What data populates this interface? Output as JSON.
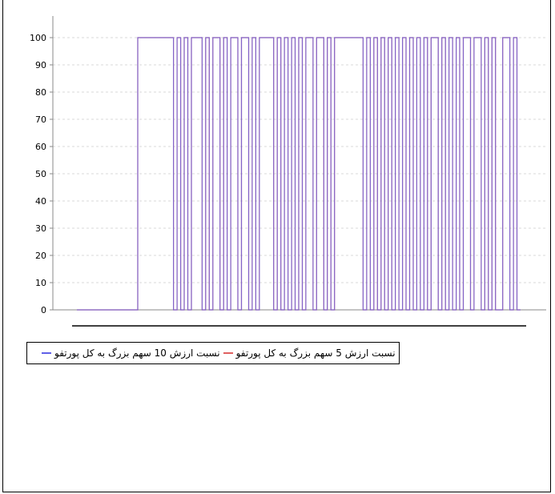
{
  "chart_data": {
    "type": "line",
    "title": "",
    "xlabel": "",
    "ylabel": "",
    "ylim": [
      0,
      100
    ],
    "yticks": [
      0,
      10,
      20,
      30,
      40,
      50,
      60,
      70,
      80,
      90,
      100
    ],
    "grid": true,
    "legend_position": "bottom",
    "series": [
      {
        "name": "نسبت ارزش 5 سهم بزرگ به کل پورتفو",
        "color": "#e06060",
        "ranges": [
          [
            0,
            17,
            0
          ],
          [
            17,
            27,
            100
          ],
          [
            27,
            28,
            0
          ],
          [
            28,
            29,
            100
          ],
          [
            29,
            30,
            0
          ],
          [
            30,
            31,
            100
          ],
          [
            31,
            32,
            0
          ],
          [
            32,
            35,
            100
          ],
          [
            35,
            36,
            0
          ],
          [
            36,
            37,
            100
          ],
          [
            37,
            38,
            0
          ],
          [
            38,
            40,
            100
          ],
          [
            40,
            41,
            0
          ],
          [
            41,
            42,
            100
          ],
          [
            42,
            43,
            0
          ],
          [
            43,
            45,
            100
          ],
          [
            45,
            46,
            0
          ],
          [
            46,
            48,
            100
          ],
          [
            48,
            49,
            0
          ],
          [
            49,
            50,
            100
          ],
          [
            50,
            51,
            0
          ],
          [
            51,
            55,
            100
          ],
          [
            55,
            56,
            0
          ],
          [
            56,
            57,
            100
          ],
          [
            57,
            58,
            0
          ],
          [
            58,
            59,
            100
          ],
          [
            59,
            60,
            0
          ],
          [
            60,
            61,
            100
          ],
          [
            61,
            62,
            0
          ],
          [
            62,
            63,
            100
          ],
          [
            63,
            64,
            0
          ],
          [
            64,
            66,
            100
          ],
          [
            66,
            67,
            0
          ],
          [
            67,
            69,
            100
          ],
          [
            69,
            70,
            0
          ],
          [
            70,
            71,
            100
          ],
          [
            71,
            72,
            0
          ],
          [
            72,
            80,
            100
          ],
          [
            80,
            81,
            0
          ],
          [
            81,
            82,
            100
          ],
          [
            82,
            83,
            0
          ],
          [
            83,
            84,
            100
          ],
          [
            84,
            85,
            0
          ],
          [
            85,
            86,
            100
          ],
          [
            86,
            87,
            0
          ],
          [
            87,
            88,
            100
          ],
          [
            88,
            89,
            0
          ],
          [
            89,
            90,
            100
          ],
          [
            90,
            91,
            0
          ],
          [
            91,
            92,
            100
          ],
          [
            92,
            93,
            0
          ],
          [
            93,
            94,
            100
          ],
          [
            94,
            95,
            0
          ],
          [
            95,
            96,
            100
          ],
          [
            96,
            97,
            0
          ],
          [
            97,
            98,
            100
          ],
          [
            98,
            99,
            0
          ],
          [
            99,
            101,
            100
          ],
          [
            101,
            102,
            0
          ],
          [
            102,
            103,
            100
          ],
          [
            103,
            104,
            0
          ],
          [
            104,
            105,
            100
          ],
          [
            105,
            106,
            0
          ],
          [
            106,
            107,
            100
          ],
          [
            107,
            108,
            0
          ],
          [
            108,
            110,
            100
          ],
          [
            110,
            111,
            0
          ],
          [
            111,
            113,
            100
          ],
          [
            113,
            114,
            0
          ],
          [
            114,
            115,
            100
          ],
          [
            115,
            116,
            0
          ],
          [
            116,
            117,
            100
          ],
          [
            117,
            119,
            0
          ],
          [
            119,
            121,
            100
          ],
          [
            121,
            122,
            0
          ],
          [
            122,
            123,
            100
          ],
          [
            123,
            124,
            0
          ]
        ]
      },
      {
        "name": "نسبت ارزش 10 سهم بزرگ به کل پورتفو",
        "color": "#6060e8",
        "ranges": [
          [
            0,
            17,
            0
          ],
          [
            17,
            27,
            100
          ],
          [
            27,
            28,
            0
          ],
          [
            28,
            29,
            100
          ],
          [
            29,
            30,
            0
          ],
          [
            30,
            31,
            100
          ],
          [
            31,
            32,
            0
          ],
          [
            32,
            35,
            100
          ],
          [
            35,
            36,
            0
          ],
          [
            36,
            37,
            100
          ],
          [
            37,
            38,
            0
          ],
          [
            38,
            40,
            100
          ],
          [
            40,
            41,
            0
          ],
          [
            41,
            42,
            100
          ],
          [
            42,
            43,
            0
          ],
          [
            43,
            45,
            100
          ],
          [
            45,
            46,
            0
          ],
          [
            46,
            48,
            100
          ],
          [
            48,
            49,
            0
          ],
          [
            49,
            50,
            100
          ],
          [
            50,
            51,
            0
          ],
          [
            51,
            55,
            100
          ],
          [
            55,
            56,
            0
          ],
          [
            56,
            57,
            100
          ],
          [
            57,
            58,
            0
          ],
          [
            58,
            59,
            100
          ],
          [
            59,
            60,
            0
          ],
          [
            60,
            61,
            100
          ],
          [
            61,
            62,
            0
          ],
          [
            62,
            63,
            100
          ],
          [
            63,
            64,
            0
          ],
          [
            64,
            66,
            100
          ],
          [
            66,
            67,
            0
          ],
          [
            67,
            69,
            100
          ],
          [
            69,
            70,
            0
          ],
          [
            70,
            71,
            100
          ],
          [
            71,
            72,
            0
          ],
          [
            72,
            80,
            100
          ],
          [
            80,
            81,
            0
          ],
          [
            81,
            82,
            100
          ],
          [
            82,
            83,
            0
          ],
          [
            83,
            84,
            100
          ],
          [
            84,
            85,
            0
          ],
          [
            85,
            86,
            100
          ],
          [
            86,
            87,
            0
          ],
          [
            87,
            88,
            100
          ],
          [
            88,
            89,
            0
          ],
          [
            89,
            90,
            100
          ],
          [
            90,
            91,
            0
          ],
          [
            91,
            92,
            100
          ],
          [
            92,
            93,
            0
          ],
          [
            93,
            94,
            100
          ],
          [
            94,
            95,
            0
          ],
          [
            95,
            96,
            100
          ],
          [
            96,
            97,
            0
          ],
          [
            97,
            98,
            100
          ],
          [
            98,
            99,
            0
          ],
          [
            99,
            101,
            100
          ],
          [
            101,
            102,
            0
          ],
          [
            102,
            103,
            100
          ],
          [
            103,
            104,
            0
          ],
          [
            104,
            105,
            100
          ],
          [
            105,
            106,
            0
          ],
          [
            106,
            107,
            100
          ],
          [
            107,
            108,
            0
          ],
          [
            108,
            110,
            100
          ],
          [
            110,
            111,
            0
          ],
          [
            111,
            113,
            100
          ],
          [
            113,
            114,
            0
          ],
          [
            114,
            115,
            100
          ],
          [
            115,
            116,
            0
          ],
          [
            116,
            117,
            100
          ],
          [
            117,
            119,
            0
          ],
          [
            119,
            121,
            100
          ],
          [
            121,
            122,
            0
          ],
          [
            122,
            123,
            100
          ],
          [
            123,
            124,
            0
          ]
        ]
      }
    ]
  },
  "legend": {
    "item1_label": "نسبت ارزش 10 سهم بزرگ به کل پورتفو",
    "item2_label": "نسبت ارزش 5 سهم بزرگ به کل پورتفو"
  }
}
